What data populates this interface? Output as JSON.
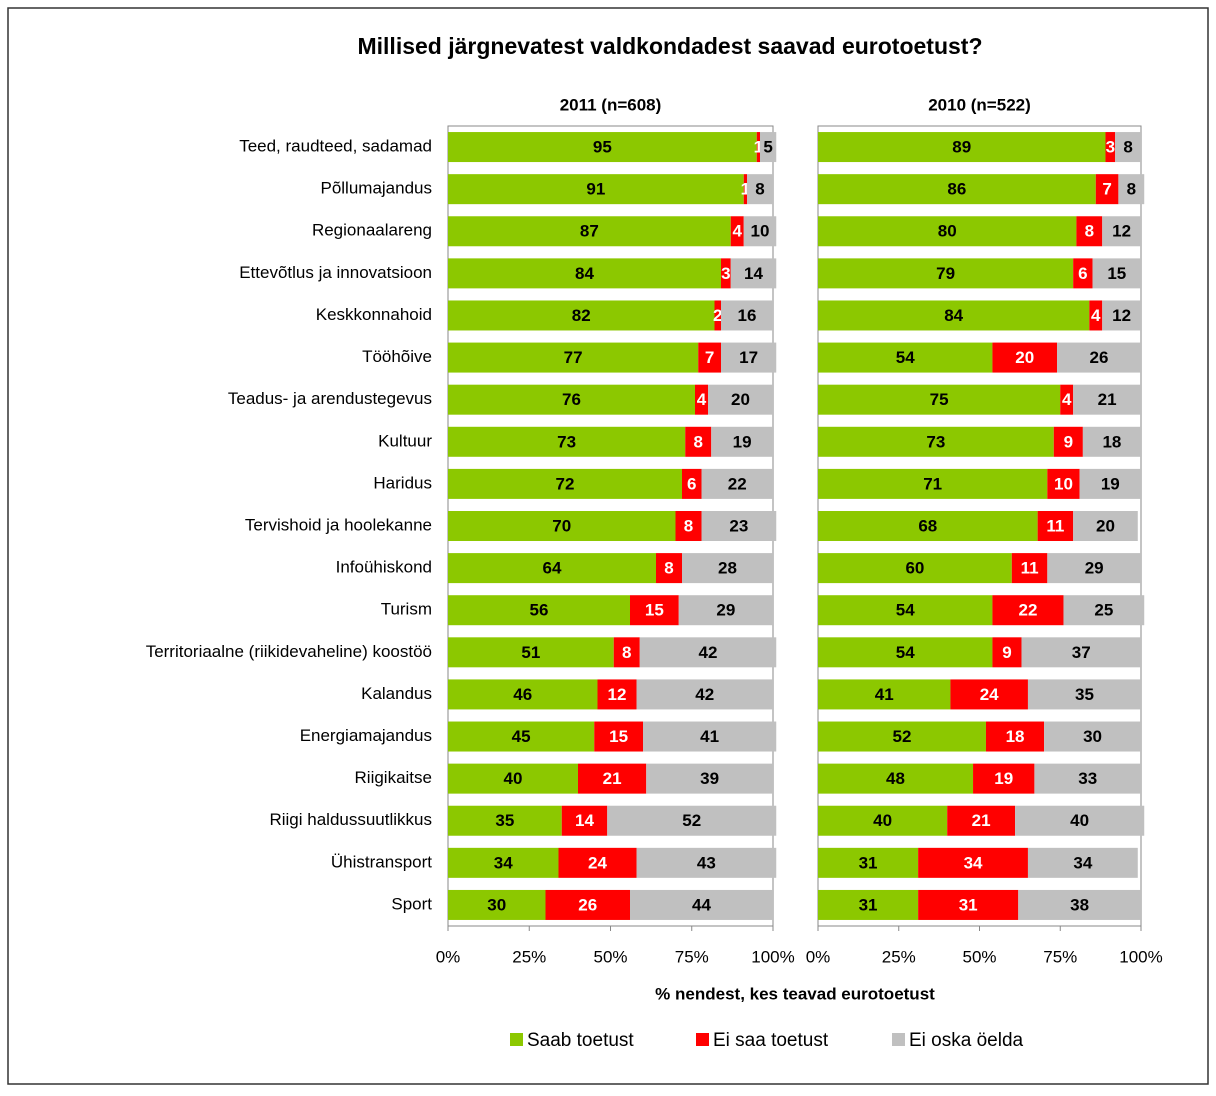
{
  "title": "Millised järgnevatest valdkondadest saavad eurotoetust?",
  "xlabel": "% nendest, kes teavad eurotoetust",
  "categories": [
    "Teed, raudteed, sadamad",
    "Põllumajandus",
    "Regionaalareng",
    "Ettevõtlus ja innovatsioon",
    "Keskkonnahoid",
    "Tööhõive",
    "Teadus- ja arendustegevus",
    "Kultuur",
    "Haridus",
    "Tervishoid ja hoolekanne",
    "Infoühiskond",
    "Turism",
    "Territoriaalne (riikidevaheline) koostöö",
    "Kalandus",
    "Energiamajandus",
    "Riigikaitse",
    "Riigi haldussuutlikkus",
    "Ühistransport",
    "Sport"
  ],
  "chart_data": [
    {
      "type": "stacked-barh",
      "title": "2011 (n=608)",
      "xlim": [
        0,
        100
      ],
      "xticks": [
        {
          "value": 0,
          "label": "0%"
        },
        {
          "value": 25,
          "label": "25%"
        },
        {
          "value": 50,
          "label": "50%"
        },
        {
          "value": 75,
          "label": "75%"
        },
        {
          "value": 100,
          "label": "100%"
        }
      ],
      "series": [
        {
          "name": "Saab toetust",
          "color": "#8cc800",
          "values": [
            95,
            91,
            87,
            84,
            82,
            77,
            76,
            73,
            72,
            70,
            64,
            56,
            51,
            46,
            45,
            40,
            35,
            34,
            30
          ]
        },
        {
          "name": "Ei saa toetust",
          "color": "#ff0000",
          "values": [
            1,
            1,
            4,
            3,
            2,
            7,
            4,
            8,
            6,
            8,
            8,
            15,
            8,
            12,
            15,
            21,
            14,
            24,
            26
          ]
        },
        {
          "name": "Ei oska öelda",
          "color": "#c0c0c0",
          "values": [
            5,
            8,
            10,
            14,
            16,
            17,
            20,
            19,
            22,
            23,
            28,
            29,
            42,
            42,
            41,
            39,
            52,
            43,
            44
          ]
        }
      ]
    },
    {
      "type": "stacked-barh",
      "title": "2010 (n=522)",
      "xlim": [
        0,
        100
      ],
      "xticks": [
        {
          "value": 0,
          "label": "0%"
        },
        {
          "value": 25,
          "label": "25%"
        },
        {
          "value": 50,
          "label": "50%"
        },
        {
          "value": 75,
          "label": "75%"
        },
        {
          "value": 100,
          "label": "100%"
        }
      ],
      "series": [
        {
          "color": "#8cc800",
          "values": [
            89,
            86,
            80,
            79,
            84,
            54,
            75,
            73,
            71,
            68,
            60,
            54,
            54,
            41,
            52,
            48,
            40,
            31,
            31
          ]
        },
        {
          "color": "#ff0000",
          "values": [
            3,
            7,
            8,
            6,
            4,
            20,
            4,
            9,
            10,
            11,
            11,
            22,
            9,
            24,
            18,
            19,
            21,
            34,
            31
          ]
        },
        {
          "color": "#c0c0c0",
          "values": [
            8,
            8,
            12,
            15,
            12,
            26,
            21,
            18,
            19,
            20,
            29,
            25,
            37,
            35,
            30,
            33,
            40,
            34,
            38
          ]
        }
      ]
    }
  ]
}
